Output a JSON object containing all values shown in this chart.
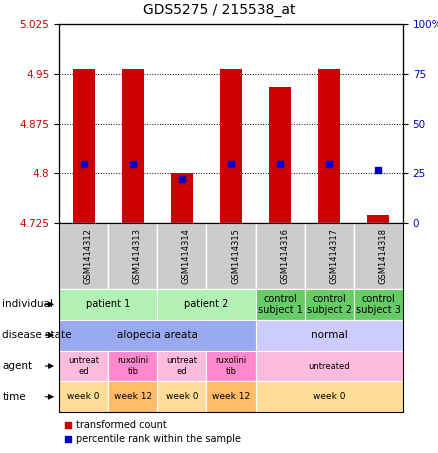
{
  "title": "GDS5275 / 215538_at",
  "samples": [
    "GSM1414312",
    "GSM1414313",
    "GSM1414314",
    "GSM1414315",
    "GSM1414316",
    "GSM1414317",
    "GSM1414318"
  ],
  "bar_values": [
    4.957,
    4.957,
    4.8,
    4.957,
    4.93,
    4.957,
    4.737
  ],
  "blue_pct": [
    30,
    30,
    22,
    30,
    30,
    30,
    27
  ],
  "ylim_left": [
    4.725,
    5.025
  ],
  "ylim_right": [
    0,
    100
  ],
  "yticks_left": [
    4.725,
    4.8,
    4.875,
    4.95,
    5.025
  ],
  "yticks_right": [
    0,
    25,
    50,
    75,
    100
  ],
  "ytick_labels_left": [
    "4.725",
    "4.8",
    "4.875",
    "4.95",
    "5.025"
  ],
  "ytick_labels_right": [
    "0",
    "25",
    "50",
    "75",
    "100%"
  ],
  "bar_color": "#cc0000",
  "blue_color": "#0000cc",
  "bar_bottom": 4.725,
  "individual_spans": [
    [
      0,
      2,
      "patient 1"
    ],
    [
      2,
      4,
      "patient 2"
    ],
    [
      4,
      5,
      "control\nsubject 1"
    ],
    [
      5,
      6,
      "control\nsubject 2"
    ],
    [
      6,
      7,
      "control\nsubject 3"
    ]
  ],
  "individual_span_colors": [
    "#b3f0b3",
    "#b3f0b3",
    "#66cc66",
    "#66cc66",
    "#66cc66"
  ],
  "disease_spans": [
    [
      0,
      4,
      "alopecia areata"
    ],
    [
      4,
      7,
      "normal"
    ]
  ],
  "disease_span_colors": [
    "#99aaee",
    "#ccccff"
  ],
  "agent_spans": [
    [
      0,
      1,
      "untreat\ned"
    ],
    [
      1,
      2,
      "ruxolini\ntib"
    ],
    [
      2,
      3,
      "untreat\ned"
    ],
    [
      3,
      4,
      "ruxolini\ntib"
    ],
    [
      4,
      7,
      "untreated"
    ]
  ],
  "agent_span_colors": [
    "#ffbbdd",
    "#ff88cc",
    "#ffbbdd",
    "#ff88cc",
    "#ffbbdd"
  ],
  "time_spans": [
    [
      0,
      1,
      "week 0"
    ],
    [
      1,
      2,
      "week 12"
    ],
    [
      2,
      3,
      "week 0"
    ],
    [
      3,
      4,
      "week 12"
    ],
    [
      4,
      7,
      "week 0"
    ]
  ],
  "time_span_colors": [
    "#ffdd99",
    "#ffbb66",
    "#ffdd99",
    "#ffbb66",
    "#ffdd99"
  ],
  "row_labels": [
    "individual",
    "disease state",
    "agent",
    "time"
  ],
  "legend_items": [
    [
      "transformed count",
      "#cc0000"
    ],
    [
      "percentile rank within the sample",
      "#0000cc"
    ]
  ],
  "xlabel_color": "#lightgray",
  "sample_label_bg": "#cccccc"
}
